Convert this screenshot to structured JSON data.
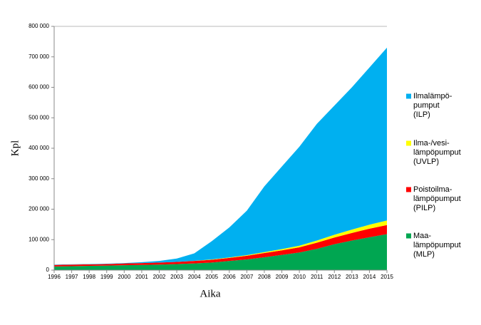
{
  "chart_data": {
    "type": "stacked-area",
    "x_label": "Aika",
    "y_label": "Kpl",
    "x": [
      "1996",
      "1997",
      "1998",
      "1999",
      "2000",
      "2001",
      "2002",
      "2003",
      "2004",
      "2005",
      "2006",
      "2007",
      "2008",
      "2009",
      "2010",
      "2011",
      "2012",
      "2013",
      "2014",
      "2015"
    ],
    "series": [
      {
        "name": "Ilmalämpö-\npumput\n(ILP)",
        "color": "#00b0f0",
        "values": [
          1000,
          1000,
          1000,
          1000,
          1000,
          3000,
          5000,
          11000,
          24500,
          60000,
          98500,
          146000,
          216000,
          271000,
          325000,
          383000,
          424000,
          467000,
          516000,
          567000
        ]
      },
      {
        "name": "Ilma-/vesi-\nlämpöpumput\n(UVLP)",
        "color": "#ffff00",
        "values": [
          0,
          0,
          0,
          0,
          0,
          0,
          0,
          0,
          500,
          1000,
          1500,
          2000,
          3000,
          4000,
          5000,
          7000,
          9000,
          11000,
          13000,
          15000
        ]
      },
      {
        "name": "Poistoilma-\nlämpöpumput\n(PILP)",
        "color": "#ff0000",
        "values": [
          5000,
          5000,
          5000,
          5000,
          6000,
          6000,
          7000,
          7000,
          8000,
          9000,
          10000,
          12000,
          14000,
          15000,
          17000,
          20000,
          22000,
          25000,
          28000,
          30000
        ]
      },
      {
        "name": "Maa-\nlämpöpumput\n(MLP)",
        "color": "#00a651",
        "values": [
          12000,
          13000,
          14000,
          15000,
          16000,
          17000,
          18000,
          20000,
          22000,
          25000,
          30000,
          35000,
          42000,
          50000,
          58000,
          70000,
          85000,
          97000,
          108000,
          118000
        ]
      }
    ],
    "ylim": [
      0,
      800000
    ],
    "yticks": [
      0,
      {
        "value": 100000,
        "label": "100 000"
      },
      {
        "value": 200000,
        "label": "200 000"
      },
      {
        "value": 300000,
        "label": "300 000"
      },
      {
        "value": 400000,
        "label": "400 000"
      },
      {
        "value": 500000,
        "label": "500 000"
      },
      {
        "value": 600000,
        "label": "600 000"
      },
      {
        "value": 700000,
        "label": "700 000"
      },
      {
        "value": 800000,
        "label": "800 000"
      }
    ],
    "legend": "right"
  }
}
